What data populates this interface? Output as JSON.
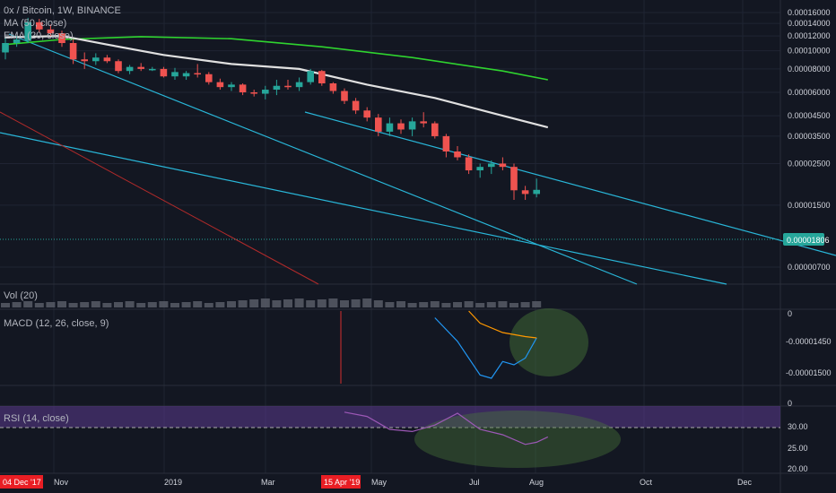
{
  "legend": {
    "symbol": "0x / Bitcoin, 1W, BINANCE",
    "ma": "MA (50, close)",
    "ema": "EMA (20, close)",
    "vol": "Vol (20)",
    "macd": "MACD (12, 26, close, 9)",
    "rsi": "RSI (14, close)"
  },
  "price_axis": {
    "ticks": [
      "0.00016000",
      "0.00014000",
      "0.00012000",
      "0.00010000",
      "0.00008000",
      "0.00006000",
      "0.00004500",
      "0.00003500",
      "0.00002500",
      "0.00001500",
      "0.00000700"
    ],
    "current_price": "0.00001806"
  },
  "macd_axis": {
    "ticks": [
      "0",
      "-0.00001450",
      "-0.00001500"
    ]
  },
  "rsi_axis": {
    "ticks": [
      "30.00",
      "25.00",
      "20.00"
    ]
  },
  "time_axis": {
    "ticks": [
      "Nov",
      "2019",
      "Mar",
      "May",
      "Jul",
      "Aug",
      "Oct",
      "Dec"
    ],
    "highlight_start": "04 Dec '17",
    "highlight_mid": "15 Apr '19"
  },
  "colors": {
    "background": "#131722",
    "bull": "#26a69a",
    "bear": "#ef5350",
    "ma50": "#2fd42f",
    "ema20": "#e0e0e0",
    "trendline": "#29b6d8",
    "macd": "#2196f3",
    "signal": "#ff9800",
    "rsi": "#9c58b6",
    "price_badge": "#26a69a",
    "date_badge": "#e91e24"
  },
  "chart_data": {
    "type": "candlestick",
    "title": "0x / Bitcoin, 1W, BINANCE",
    "y_scale": "log",
    "ylim": [
      5.5e-06,
      0.00017
    ],
    "candles": [
      {
        "o": 9.8e-05,
        "h": 0.000118,
        "l": 9e-05,
        "c": 0.00011
      },
      {
        "o": 0.00011,
        "h": 0.00012,
        "l": 0.000105,
        "c": 0.000115
      },
      {
        "o": 0.000113,
        "h": 0.00015,
        "l": 0.00011,
        "c": 0.000142
      },
      {
        "o": 0.000142,
        "h": 0.000148,
        "l": 0.000125,
        "c": 0.00013
      },
      {
        "o": 0.00013,
        "h": 0.000138,
        "l": 0.00012,
        "c": 0.000124
      },
      {
        "o": 0.000124,
        "h": 0.000128,
        "l": 0.000105,
        "c": 0.00011
      },
      {
        "o": 0.00011,
        "h": 0.000115,
        "l": 8.5e-05,
        "c": 9e-05
      },
      {
        "o": 9e-05,
        "h": 9.8e-05,
        "l": 8e-05,
        "c": 8.8e-05
      },
      {
        "o": 8.8e-05,
        "h": 9.7e-05,
        "l": 8.4e-05,
        "c": 9.2e-05
      },
      {
        "o": 9.2e-05,
        "h": 9.5e-05,
        "l": 8.6e-05,
        "c": 8.8e-05
      },
      {
        "o": 8.8e-05,
        "h": 9e-05,
        "l": 7.6e-05,
        "c": 7.8e-05
      },
      {
        "o": 7.8e-05,
        "h": 8.4e-05,
        "l": 7.5e-05,
        "c": 8.2e-05
      },
      {
        "o": 8.2e-05,
        "h": 8.6e-05,
        "l": 7.8e-05,
        "c": 8e-05
      },
      {
        "o": 8e-05,
        "h": 8.2e-05,
        "l": 7.8e-05,
        "c": 8e-05
      },
      {
        "o": 8e-05,
        "h": 8.2e-05,
        "l": 7.2e-05,
        "c": 7.3e-05
      },
      {
        "o": 7.3e-05,
        "h": 8.1e-05,
        "l": 7e-05,
        "c": 7.7e-05
      },
      {
        "o": 7.3e-05,
        "h": 7.8e-05,
        "l": 7e-05,
        "c": 7.6e-05
      },
      {
        "o": 7.6e-05,
        "h": 8.5e-05,
        "l": 7.2e-05,
        "c": 7.5e-05
      },
      {
        "o": 7.5e-05,
        "h": 7.7e-05,
        "l": 6.6e-05,
        "c": 6.8e-05
      },
      {
        "o": 6.8e-05,
        "h": 7.1e-05,
        "l": 6.2e-05,
        "c": 6.4e-05
      },
      {
        "o": 6.4e-05,
        "h": 6.8e-05,
        "l": 6.1e-05,
        "c": 6.6e-05
      },
      {
        "o": 6.6e-05,
        "h": 6.7e-05,
        "l": 5.8e-05,
        "c": 6e-05
      },
      {
        "o": 6e-05,
        "h": 6.2e-05,
        "l": 5.7e-05,
        "c": 5.9e-05
      },
      {
        "o": 5.9e-05,
        "h": 6.5e-05,
        "l": 5.5e-05,
        "c": 6.2e-05
      },
      {
        "o": 6.2e-05,
        "h": 7e-05,
        "l": 5.8e-05,
        "c": 6.5e-05
      },
      {
        "o": 6.5e-05,
        "h": 7e-05,
        "l": 6.2e-05,
        "c": 6.4e-05
      },
      {
        "o": 6.4e-05,
        "h": 7.2e-05,
        "l": 6.1e-05,
        "c": 6.8e-05
      },
      {
        "o": 6.8e-05,
        "h": 8e-05,
        "l": 6.6e-05,
        "c": 7.8e-05
      },
      {
        "o": 7.8e-05,
        "h": 7.9e-05,
        "l": 6.5e-05,
        "c": 6.7e-05
      },
      {
        "o": 6.7e-05,
        "h": 6.8e-05,
        "l": 5.9e-05,
        "c": 6.1e-05
      },
      {
        "o": 6.1e-05,
        "h": 6.3e-05,
        "l": 5.2e-05,
        "c": 5.4e-05
      },
      {
        "o": 5.4e-05,
        "h": 5.6e-05,
        "l": 4.6e-05,
        "c": 4.8e-05
      },
      {
        "o": 4.8e-05,
        "h": 5e-05,
        "l": 4.2e-05,
        "c": 4.4e-05
      },
      {
        "o": 4.4e-05,
        "h": 4.6e-05,
        "l": 3.5e-05,
        "c": 3.7e-05
      },
      {
        "o": 3.7e-05,
        "h": 4.4e-05,
        "l": 3.5e-05,
        "c": 4.1e-05
      },
      {
        "o": 4.1e-05,
        "h": 4.3e-05,
        "l": 3.6e-05,
        "c": 3.8e-05
      },
      {
        "o": 3.8e-05,
        "h": 4.4e-05,
        "l": 3.5e-05,
        "c": 4.2e-05
      },
      {
        "o": 4.2e-05,
        "h": 4.7e-05,
        "l": 3.9e-05,
        "c": 4.1e-05
      },
      {
        "o": 4.1e-05,
        "h": 4.2e-05,
        "l": 3.4e-05,
        "c": 3.5e-05
      },
      {
        "o": 3.5e-05,
        "h": 3.6e-05,
        "l": 2.7e-05,
        "c": 2.9e-05
      },
      {
        "o": 2.9e-05,
        "h": 3.1e-05,
        "l": 2.6e-05,
        "c": 2.7e-05
      },
      {
        "o": 2.7e-05,
        "h": 2.8e-05,
        "l": 2.2e-05,
        "c": 2.3e-05
      },
      {
        "o": 2.3e-05,
        "h": 2.5e-05,
        "l": 2.1e-05,
        "c": 2.4e-05
      },
      {
        "o": 2.4e-05,
        "h": 2.6e-05,
        "l": 2.2e-05,
        "c": 2.5e-05
      },
      {
        "o": 2.5e-05,
        "h": 2.7e-05,
        "l": 2.3e-05,
        "c": 2.4e-05
      },
      {
        "o": 2.4e-05,
        "h": 2.5e-05,
        "l": 1.6e-05,
        "c": 1.8e-05
      },
      {
        "o": 1.8e-05,
        "h": 1.9e-05,
        "l": 1.6e-05,
        "c": 1.72e-05
      },
      {
        "o": 1.72e-05,
        "h": 2.08e-05,
        "l": 1.65e-05,
        "c": 1.81e-05
      }
    ],
    "ma50": [
      [
        0,
        0.000108
      ],
      [
        5,
        0.000115
      ],
      [
        12,
        0.000119
      ],
      [
        20,
        0.000116
      ],
      [
        28,
        0.000105
      ],
      [
        36,
        9.2e-05
      ],
      [
        44,
        7.8e-05
      ],
      [
        48,
        7e-05
      ]
    ],
    "ema20": [
      [
        0,
        0.000118
      ],
      [
        5,
        0.00012
      ],
      [
        9,
        0.000108
      ],
      [
        14,
        9.5e-05
      ],
      [
        20,
        8.5e-05
      ],
      [
        26,
        8e-05
      ],
      [
        32,
        6.6e-05
      ],
      [
        38,
        5.6e-05
      ],
      [
        44,
        4.5e-05
      ],
      [
        48,
        3.9e-05
      ]
    ],
    "macd_line": [
      [
        38,
        0.1
      ],
      [
        40,
        0.45
      ],
      [
        42,
        0.95
      ],
      [
        43,
        1.0
      ],
      [
        44,
        0.75
      ],
      [
        45,
        0.8
      ],
      [
        46,
        0.7
      ],
      [
        47,
        0.4
      ]
    ],
    "signal_line": [
      [
        41,
        0.0
      ],
      [
        42,
        0.18
      ],
      [
        44,
        0.32
      ],
      [
        46,
        0.38
      ],
      [
        47,
        0.4
      ]
    ],
    "rsi": [
      [
        30,
        0.2
      ],
      [
        32,
        0.4
      ],
      [
        34,
        1.0
      ],
      [
        36,
        1.1
      ],
      [
        38,
        0.8
      ],
      [
        40,
        0.25
      ],
      [
        42,
        1.0
      ],
      [
        44,
        1.25
      ],
      [
        46,
        1.7
      ],
      [
        47,
        1.6
      ],
      [
        48,
        1.35
      ]
    ]
  }
}
